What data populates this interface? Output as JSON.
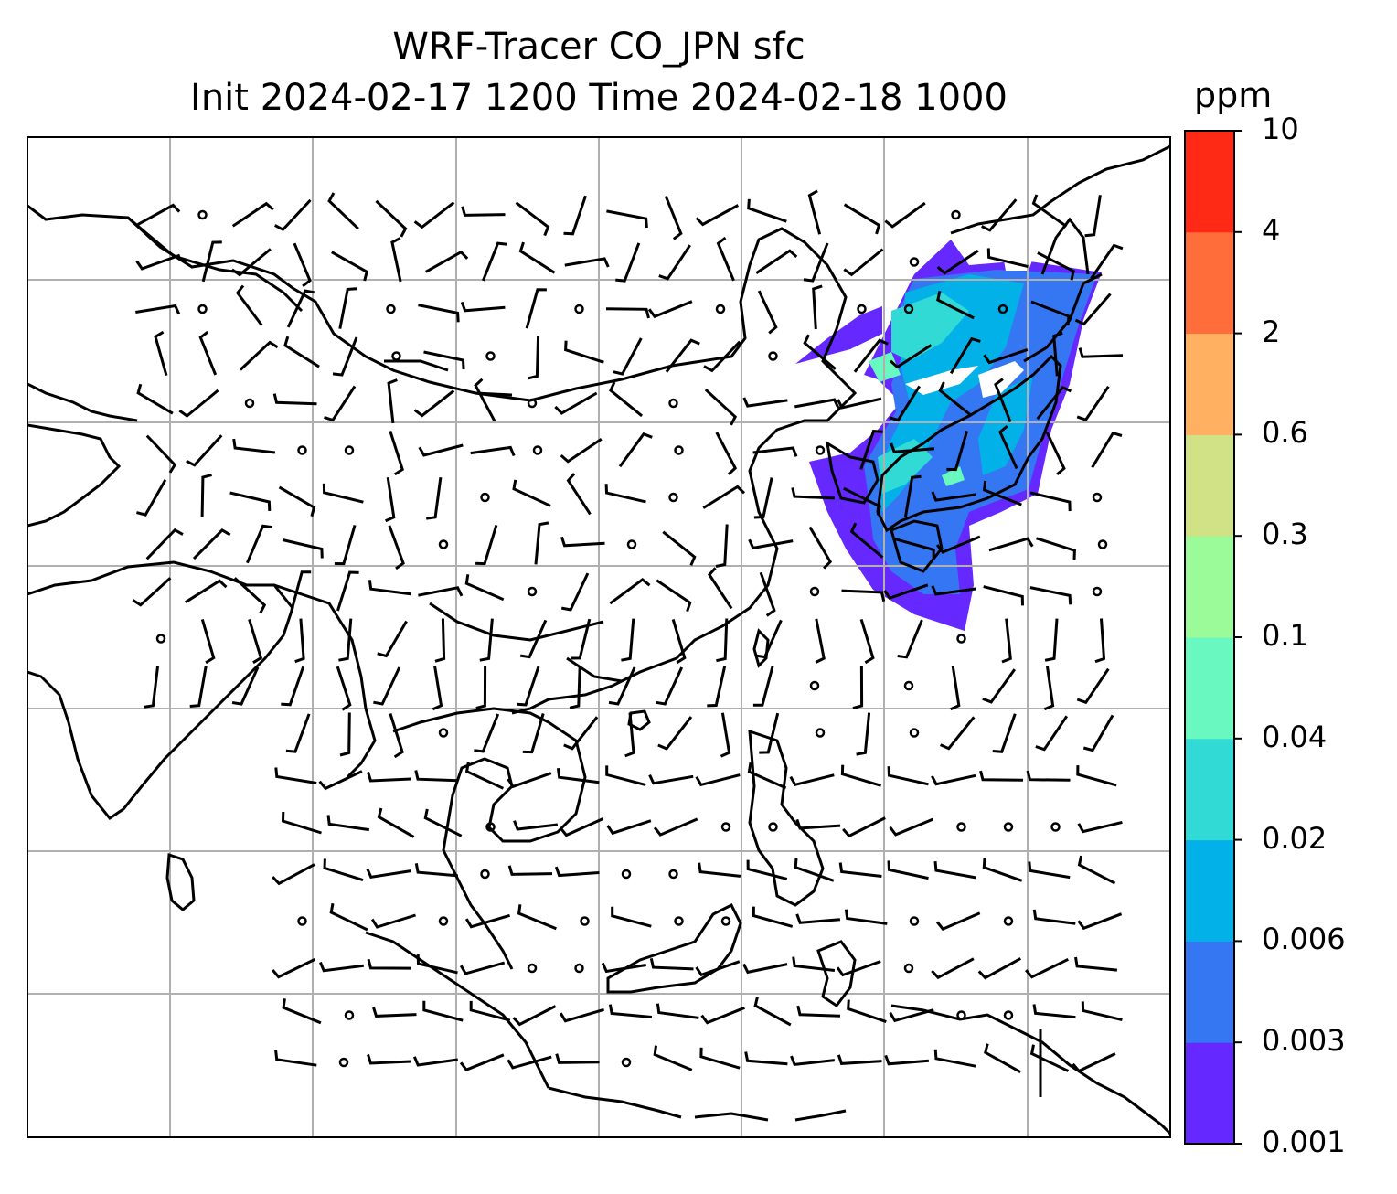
{
  "title": {
    "line1": "WRF-Tracer CO_JPN sfc",
    "line2": "Init 2024-02-17 1200 Time 2024-02-18 1000"
  },
  "colorbar": {
    "unit": "ppm",
    "ticks": [
      "0.001",
      "0.003",
      "0.006",
      "0.02",
      "0.04",
      "0.1",
      "0.3",
      "0.6",
      "2",
      "4",
      "10"
    ],
    "colors": [
      "#6528ff",
      "#3576f3",
      "#03b1e9",
      "#32dad5",
      "#69f8bf",
      "#9bfb99",
      "#d0e186",
      "#ffb060",
      "#ff6d3b",
      "#ff2a15"
    ]
  },
  "map": {
    "coastline_color": "#000000",
    "grid_color": "#b0b0b0",
    "wind_barb_color": "#000000"
  }
}
